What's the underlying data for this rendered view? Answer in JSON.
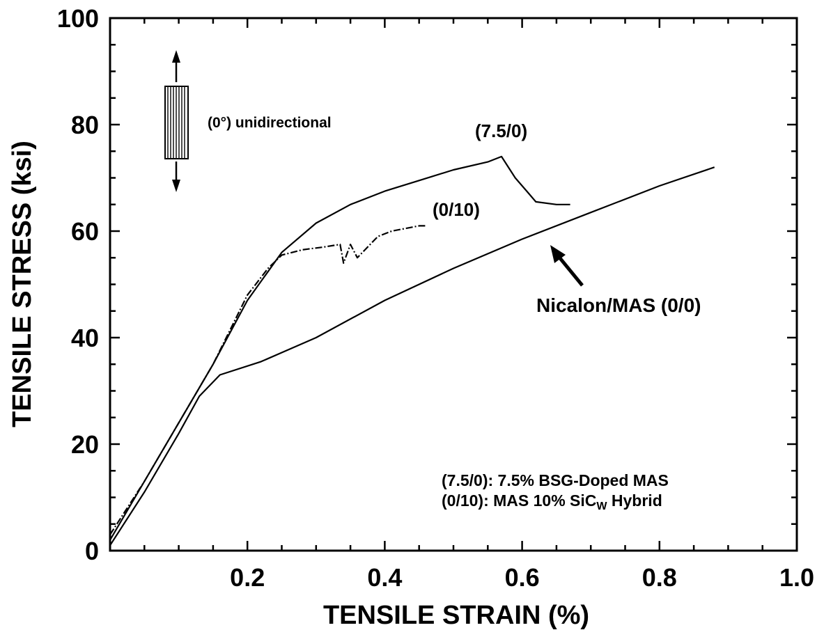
{
  "chart_data": {
    "type": "line",
    "xlabel": "TENSILE STRAIN (%)",
    "ylabel": "TENSILE STRESS (ksi)",
    "xlim": [
      0,
      1.0
    ],
    "ylim": [
      0,
      100
    ],
    "x_tick_labels": [
      "0.2",
      "0.4",
      "0.6",
      "0.8",
      "1.0"
    ],
    "y_tick_labels": [
      "0",
      "20",
      "40",
      "60",
      "80",
      "100"
    ],
    "grid": false,
    "series": [
      {
        "name": "Nicalon/MAS (0/0)",
        "x": [
          0.0,
          0.05,
          0.1,
          0.13,
          0.16,
          0.22,
          0.3,
          0.4,
          0.5,
          0.6,
          0.7,
          0.8,
          0.88
        ],
        "y": [
          1,
          11,
          22,
          29,
          33,
          35.5,
          40,
          47,
          53,
          58.5,
          63.5,
          68.5,
          72
        ]
      },
      {
        "name": "(7.5/0)",
        "x": [
          0.0,
          0.05,
          0.1,
          0.15,
          0.2,
          0.25,
          0.3,
          0.35,
          0.4,
          0.45,
          0.5,
          0.55,
          0.57,
          0.59,
          0.61,
          0.62,
          0.65,
          0.67
        ],
        "y": [
          2,
          13,
          24,
          35,
          47,
          56,
          61.5,
          65,
          67.5,
          69.5,
          71.5,
          73,
          74,
          70,
          67,
          65.5,
          65,
          65
        ]
      },
      {
        "name": "(0/10)",
        "x": [
          0.0,
          0.05,
          0.1,
          0.15,
          0.2,
          0.23,
          0.25,
          0.28,
          0.31,
          0.335,
          0.34,
          0.35,
          0.36,
          0.39,
          0.41,
          0.43,
          0.45,
          0.46
        ],
        "y": [
          3,
          13,
          24,
          35,
          48,
          53,
          55.5,
          56.5,
          57,
          57.5,
          54,
          57.5,
          55,
          59,
          60,
          60.5,
          61,
          61
        ]
      }
    ],
    "annotations": {
      "orientation": "(0°) unidirectional",
      "label_75": "(7.5/0)",
      "label_010": "(0/10)",
      "label_nicalon": "Nicalon/MAS (0/0)",
      "legend_line1": "(7.5/0):  7.5%  BSG-Doped  MAS",
      "legend_line2_prefix": "(0/10):  MAS  10%  SiC",
      "legend_line2_sub": "W",
      "legend_line2_suffix": "  Hybrid"
    }
  }
}
